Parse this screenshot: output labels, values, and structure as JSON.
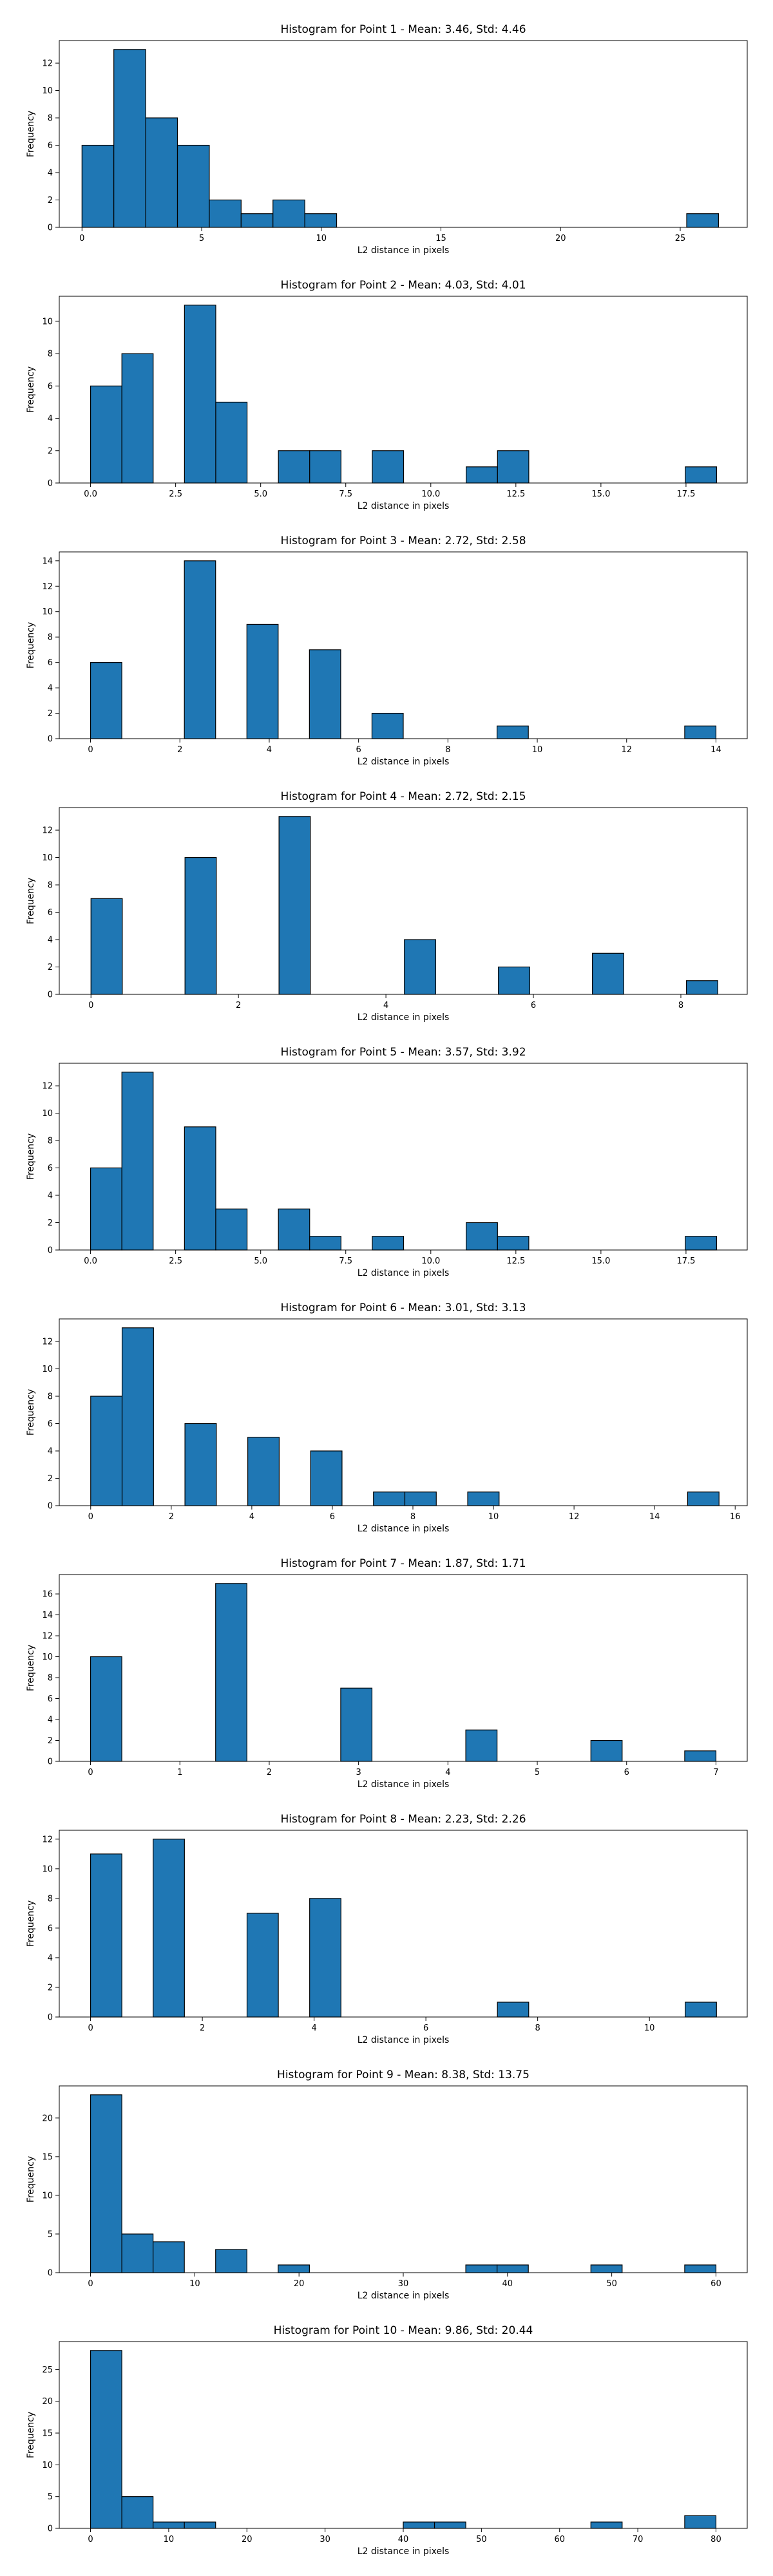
{
  "chart_data": [
    {
      "type": "bar",
      "title": "Histogram for Point 1 - Mean: 3.46, Std: 4.46",
      "xlabel": "L2 distance in pixels",
      "ylabel": "Frequency",
      "xlim": [
        -0.95,
        27.8
      ],
      "ylim": [
        0,
        13.65
      ],
      "xticks": [
        0,
        5,
        10,
        15,
        20,
        25
      ],
      "xtick_labels": [
        "0",
        "5",
        "10",
        "15",
        "20",
        "25"
      ],
      "yticks": [
        0,
        2,
        4,
        6,
        8,
        10,
        12
      ],
      "ytick_labels": [
        "0",
        "2",
        "4",
        "6",
        "8",
        "10",
        "12"
      ],
      "bin_start": 0.0,
      "bin_width": 1.33,
      "values": [
        6,
        13,
        8,
        6,
        2,
        1,
        2,
        1,
        0,
        0,
        0,
        0,
        0,
        0,
        0,
        0,
        0,
        0,
        0,
        1
      ],
      "grid": false,
      "legend": "none"
    },
    {
      "type": "bar",
      "title": "Histogram for Point 2 - Mean: 4.03, Std: 4.01",
      "xlabel": "L2 distance in pixels",
      "ylabel": "Frequency",
      "xlim": [
        -0.92,
        19.3
      ],
      "ylim": [
        0,
        11.55
      ],
      "xticks": [
        0,
        2.5,
        5,
        7.5,
        10,
        12.5,
        15,
        17.5
      ],
      "xtick_labels": [
        "0.0",
        "2.5",
        "5.0",
        "7.5",
        "10.0",
        "12.5",
        "15.0",
        "17.5"
      ],
      "yticks": [
        0,
        2,
        4,
        6,
        8,
        10
      ],
      "ytick_labels": [
        "0",
        "2",
        "4",
        "6",
        "8",
        "10"
      ],
      "bin_start": 0.0,
      "bin_width": 0.92,
      "values": [
        6,
        8,
        0,
        11,
        5,
        0,
        2,
        2,
        0,
        2,
        0,
        0,
        1,
        2,
        0,
        0,
        0,
        0,
        0,
        1
      ],
      "grid": false,
      "legend": "none"
    },
    {
      "type": "bar",
      "title": "Histogram for Point 3 - Mean: 2.72, Std: 2.58",
      "xlabel": "L2 distance in pixels",
      "ylabel": "Frequency",
      "xlim": [
        -0.7,
        14.7
      ],
      "ylim": [
        0,
        14.7
      ],
      "xticks": [
        0,
        2,
        4,
        6,
        8,
        10,
        12,
        14
      ],
      "xtick_labels": [
        "0",
        "2",
        "4",
        "6",
        "8",
        "10",
        "12",
        "14"
      ],
      "yticks": [
        0,
        2,
        4,
        6,
        8,
        10,
        12,
        14
      ],
      "ytick_labels": [
        "0",
        "2",
        "4",
        "6",
        "8",
        "10",
        "12",
        "14"
      ],
      "bin_start": 0.0,
      "bin_width": 0.7,
      "values": [
        6,
        0,
        0,
        14,
        0,
        9,
        0,
        7,
        0,
        2,
        0,
        0,
        0,
        1,
        0,
        0,
        0,
        0,
        0,
        1
      ],
      "grid": false,
      "legend": "none"
    },
    {
      "type": "bar",
      "title": "Histogram for Point 4 - Mean: 2.72, Std: 2.15",
      "xlabel": "L2 distance in pixels",
      "ylabel": "Frequency",
      "xlim": [
        -0.43,
        8.9
      ],
      "ylim": [
        0,
        13.65
      ],
      "xticks": [
        0,
        2,
        4,
        6,
        8
      ],
      "xtick_labels": [
        "0",
        "2",
        "4",
        "6",
        "8"
      ],
      "yticks": [
        0,
        2,
        4,
        6,
        8,
        10,
        12
      ],
      "ytick_labels": [
        "0",
        "2",
        "4",
        "6",
        "8",
        "10",
        "12"
      ],
      "bin_start": 0.0,
      "bin_width": 0.425,
      "values": [
        7,
        0,
        0,
        10,
        0,
        0,
        13,
        0,
        0,
        0,
        4,
        0,
        0,
        2,
        0,
        0,
        3,
        0,
        0,
        1
      ],
      "grid": false,
      "legend": "none"
    },
    {
      "type": "bar",
      "title": "Histogram for Point 5 - Mean: 3.57, Std: 3.92",
      "xlabel": "L2 distance in pixels",
      "ylabel": "Frequency",
      "xlim": [
        -0.92,
        19.3
      ],
      "ylim": [
        0,
        13.65
      ],
      "xticks": [
        0,
        2.5,
        5,
        7.5,
        10,
        12.5,
        15,
        17.5
      ],
      "xtick_labels": [
        "0.0",
        "2.5",
        "5.0",
        "7.5",
        "10.0",
        "12.5",
        "15.0",
        "17.5"
      ],
      "yticks": [
        0,
        2,
        4,
        6,
        8,
        10,
        12
      ],
      "ytick_labels": [
        "0",
        "2",
        "4",
        "6",
        "8",
        "10",
        "12"
      ],
      "bin_start": 0.0,
      "bin_width": 0.92,
      "values": [
        6,
        13,
        0,
        9,
        3,
        0,
        3,
        1,
        0,
        1,
        0,
        0,
        2,
        1,
        0,
        0,
        0,
        0,
        0,
        1
      ],
      "grid": false,
      "legend": "none"
    },
    {
      "type": "bar",
      "title": "Histogram for Point 6 - Mean: 3.01, Std: 3.13",
      "xlabel": "L2 distance in pixels",
      "ylabel": "Frequency",
      "xlim": [
        -0.78,
        16.3
      ],
      "ylim": [
        0,
        13.65
      ],
      "xticks": [
        0,
        2,
        4,
        6,
        8,
        10,
        12,
        14,
        16
      ],
      "xtick_labels": [
        "0",
        "2",
        "4",
        "6",
        "8",
        "10",
        "12",
        "14",
        "16"
      ],
      "yticks": [
        0,
        2,
        4,
        6,
        8,
        10,
        12
      ],
      "ytick_labels": [
        "0",
        "2",
        "4",
        "6",
        "8",
        "10",
        "12"
      ],
      "bin_start": 0.0,
      "bin_width": 0.78,
      "values": [
        8,
        13,
        0,
        6,
        0,
        5,
        0,
        4,
        0,
        1,
        1,
        0,
        1,
        0,
        0,
        0,
        0,
        0,
        0,
        1
      ],
      "grid": false,
      "legend": "none"
    },
    {
      "type": "bar",
      "title": "Histogram for Point 7 - Mean: 1.87, Std: 1.71",
      "xlabel": "L2 distance in pixels",
      "ylabel": "Frequency",
      "xlim": [
        -0.35,
        7.35
      ],
      "ylim": [
        0,
        17.85
      ],
      "xticks": [
        0,
        1,
        2,
        3,
        4,
        5,
        6,
        7
      ],
      "xtick_labels": [
        "0",
        "1",
        "2",
        "3",
        "4",
        "5",
        "6",
        "7"
      ],
      "yticks": [
        0,
        2,
        4,
        6,
        8,
        10,
        12,
        14,
        16
      ],
      "ytick_labels": [
        "0",
        "2",
        "4",
        "6",
        "8",
        "10",
        "12",
        "14",
        "16"
      ],
      "bin_start": 0.0,
      "bin_width": 0.35,
      "values": [
        10,
        0,
        0,
        0,
        17,
        0,
        0,
        0,
        7,
        0,
        0,
        0,
        3,
        0,
        0,
        0,
        2,
        0,
        0,
        1
      ],
      "grid": false,
      "legend": "none"
    },
    {
      "type": "bar",
      "title": "Histogram for Point 8 - Mean: 2.23, Std: 2.26",
      "xlabel": "L2 distance in pixels",
      "ylabel": "Frequency",
      "xlim": [
        -0.56,
        11.75
      ],
      "ylim": [
        0,
        12.6
      ],
      "xticks": [
        0,
        2,
        4,
        6,
        8,
        10
      ],
      "xtick_labels": [
        "0",
        "2",
        "4",
        "6",
        "8",
        "10"
      ],
      "yticks": [
        0,
        2,
        4,
        6,
        8,
        10,
        12
      ],
      "ytick_labels": [
        "0",
        "2",
        "4",
        "6",
        "8",
        "10",
        "12"
      ],
      "bin_start": 0.0,
      "bin_width": 0.56,
      "values": [
        11,
        0,
        12,
        0,
        0,
        7,
        0,
        8,
        0,
        0,
        0,
        0,
        0,
        1,
        0,
        0,
        0,
        0,
        0,
        1
      ],
      "grid": false,
      "legend": "none"
    },
    {
      "type": "bar",
      "title": "Histogram for Point 9 - Mean: 8.38, Std: 13.75",
      "xlabel": "L2 distance in pixels",
      "ylabel": "Frequency",
      "xlim": [
        -3.0,
        63.0
      ],
      "ylim": [
        0,
        24.15
      ],
      "xticks": [
        0,
        10,
        20,
        30,
        40,
        50,
        60
      ],
      "xtick_labels": [
        "0",
        "10",
        "20",
        "30",
        "40",
        "50",
        "60"
      ],
      "yticks": [
        0,
        5,
        10,
        15,
        20
      ],
      "ytick_labels": [
        "0",
        "5",
        "10",
        "15",
        "20"
      ],
      "bin_start": 0.0,
      "bin_width": 3.0,
      "values": [
        23,
        5,
        4,
        0,
        3,
        0,
        1,
        0,
        0,
        0,
        0,
        0,
        1,
        1,
        0,
        0,
        1,
        0,
        0,
        1
      ],
      "grid": false,
      "legend": "none"
    },
    {
      "type": "bar",
      "title": "Histogram for Point 10 - Mean: 9.86, Std: 20.44",
      "xlabel": "L2 distance in pixels",
      "ylabel": "Frequency",
      "xlim": [
        -4.0,
        84.0
      ],
      "ylim": [
        0,
        29.4
      ],
      "xticks": [
        0,
        10,
        20,
        30,
        40,
        50,
        60,
        70,
        80
      ],
      "xtick_labels": [
        "0",
        "10",
        "20",
        "30",
        "40",
        "50",
        "60",
        "70",
        "80"
      ],
      "yticks": [
        0,
        5,
        10,
        15,
        20,
        25
      ],
      "ytick_labels": [
        "0",
        "5",
        "10",
        "15",
        "20",
        "25"
      ],
      "bin_start": 0.0,
      "bin_width": 4.0,
      "values": [
        28,
        5,
        1,
        1,
        0,
        0,
        0,
        0,
        0,
        0,
        1,
        1,
        0,
        0,
        0,
        0,
        1,
        0,
        0,
        2
      ],
      "grid": false,
      "legend": "none"
    }
  ],
  "colors": {
    "bar_fill": "#1f77b4",
    "bar_edge": "#000000",
    "background": "#ffffff"
  }
}
